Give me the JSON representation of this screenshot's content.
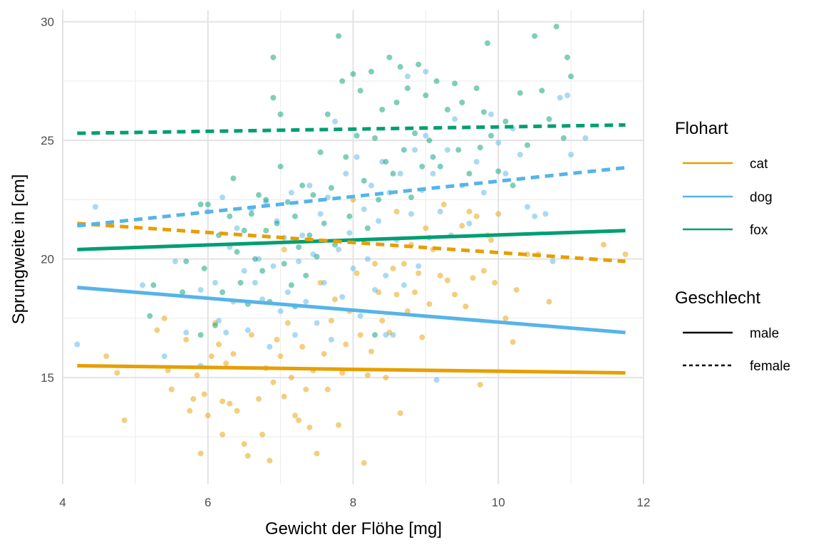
{
  "chart_data": {
    "type": "scatter",
    "xlabel": "Gewicht der Flöhe [mg]",
    "ylabel": "Sprungweite in [cm]",
    "xlim": [
      4,
      12
    ],
    "ylim": [
      10.5,
      30.5
    ],
    "x_ticks": [
      4,
      6,
      8,
      10,
      12
    ],
    "x_tick_labels": [
      "4",
      "6",
      "8",
      "10",
      "12"
    ],
    "y_ticks": [
      15,
      20,
      25,
      30
    ],
    "y_tick_labels": [
      "15",
      "20",
      "25",
      "30"
    ],
    "grid": true,
    "legend_placement": "right",
    "colors": {
      "cat": "#E69F00",
      "dog": "#56B4E9",
      "fox": "#009E73"
    },
    "legend": {
      "color_title": "Flohart",
      "color_entries": [
        "cat",
        "dog",
        "fox"
      ],
      "linetype_title": "Geschlecht",
      "linetype_entries": [
        "male",
        "female"
      ]
    },
    "series": [
      {
        "species": "cat",
        "points": [
          [
            4.6,
            15.9
          ],
          [
            4.75,
            15.2
          ],
          [
            4.85,
            13.2
          ],
          [
            5.3,
            17.0
          ],
          [
            5.4,
            17.5
          ],
          [
            5.45,
            15.3
          ],
          [
            5.5,
            14.5
          ],
          [
            5.7,
            16.6
          ],
          [
            5.75,
            13.6
          ],
          [
            5.8,
            14.1
          ],
          [
            5.85,
            15.1
          ],
          [
            5.9,
            11.8
          ],
          [
            5.95,
            14.3
          ],
          [
            6.0,
            13.4
          ],
          [
            6.05,
            15.9
          ],
          [
            6.1,
            17.3
          ],
          [
            6.15,
            16.4
          ],
          [
            6.2,
            14.0
          ],
          [
            6.2,
            12.6
          ],
          [
            6.25,
            15.6
          ],
          [
            6.3,
            13.9
          ],
          [
            6.35,
            16.0
          ],
          [
            6.4,
            13.6
          ],
          [
            6.5,
            12.2
          ],
          [
            6.55,
            11.7
          ],
          [
            6.6,
            16.8
          ],
          [
            6.7,
            14.1
          ],
          [
            6.75,
            12.6
          ],
          [
            6.8,
            15.4
          ],
          [
            6.85,
            11.5
          ],
          [
            6.9,
            14.8
          ],
          [
            6.95,
            16.6
          ],
          [
            7.0,
            15.9
          ],
          [
            7.05,
            14.2
          ],
          [
            7.1,
            17.3
          ],
          [
            7.15,
            15.0
          ],
          [
            7.2,
            13.4
          ],
          [
            7.25,
            13.2
          ],
          [
            7.3,
            16.3
          ],
          [
            7.35,
            14.5
          ],
          [
            7.4,
            12.9
          ],
          [
            7.45,
            15.3
          ],
          [
            7.5,
            11.8
          ],
          [
            7.55,
            19.0
          ],
          [
            7.6,
            16.0
          ],
          [
            7.65,
            14.5
          ],
          [
            7.7,
            17.4
          ],
          [
            7.75,
            18.3
          ],
          [
            7.8,
            13.0
          ],
          [
            7.85,
            15.2
          ],
          [
            7.9,
            16.4
          ],
          [
            7.95,
            17.8
          ],
          [
            8.05,
            19.4
          ],
          [
            8.1,
            16.8
          ],
          [
            8.15,
            11.4
          ],
          [
            8.2,
            15.1
          ],
          [
            8.25,
            16.1
          ],
          [
            8.3,
            19.8
          ],
          [
            8.35,
            18.6
          ],
          [
            8.4,
            17.4
          ],
          [
            8.45,
            15.0
          ],
          [
            8.5,
            16.9
          ],
          [
            8.55,
            19.6
          ],
          [
            8.6,
            18.5
          ],
          [
            8.65,
            13.5
          ],
          [
            8.7,
            19.8
          ],
          [
            8.75,
            17.8
          ],
          [
            8.8,
            20.6
          ],
          [
            8.85,
            18.6
          ],
          [
            8.9,
            19.4
          ],
          [
            8.95,
            16.7
          ],
          [
            9.0,
            21.3
          ],
          [
            9.05,
            18.1
          ],
          [
            9.1,
            20.4
          ],
          [
            9.2,
            19.3
          ],
          [
            9.25,
            22.3
          ],
          [
            9.3,
            19.1
          ],
          [
            9.4,
            18.5
          ],
          [
            9.5,
            21.4
          ],
          [
            9.55,
            18.0
          ],
          [
            9.6,
            22.0
          ],
          [
            9.65,
            19.2
          ],
          [
            9.7,
            21.8
          ],
          [
            9.75,
            14.7
          ],
          [
            9.8,
            19.5
          ],
          [
            9.85,
            21.0
          ],
          [
            9.9,
            20.8
          ],
          [
            9.95,
            19.0
          ],
          [
            10.0,
            21.9
          ],
          [
            10.1,
            17.5
          ],
          [
            10.2,
            16.5
          ],
          [
            10.25,
            18.7
          ],
          [
            10.4,
            20.2
          ],
          [
            10.55,
            20.2
          ],
          [
            10.7,
            18.2
          ],
          [
            11.45,
            20.6
          ],
          [
            11.75,
            20.2
          ],
          [
            8.0,
            22.5
          ],
          [
            8.6,
            22.0
          ],
          [
            7.05,
            20.4
          ]
        ]
      },
      {
        "species": "dog",
        "points": [
          [
            4.2,
            16.4
          ],
          [
            4.45,
            22.2
          ],
          [
            5.1,
            18.9
          ],
          [
            5.4,
            15.9
          ],
          [
            5.55,
            19.9
          ],
          [
            5.7,
            16.9
          ],
          [
            5.9,
            18.7
          ],
          [
            5.9,
            15.5
          ],
          [
            6.0,
            22.0
          ],
          [
            6.1,
            19.0
          ],
          [
            6.15,
            17.4
          ],
          [
            6.2,
            22.6
          ],
          [
            6.25,
            16.9
          ],
          [
            6.3,
            20.5
          ],
          [
            6.35,
            18.2
          ],
          [
            6.4,
            21.3
          ],
          [
            6.5,
            19.5
          ],
          [
            6.55,
            17.0
          ],
          [
            6.6,
            22.1
          ],
          [
            6.65,
            19.0
          ],
          [
            6.7,
            20.0
          ],
          [
            6.75,
            18.3
          ],
          [
            6.8,
            22.4
          ],
          [
            6.85,
            16.3
          ],
          [
            6.9,
            19.7
          ],
          [
            6.95,
            21.6
          ],
          [
            7.0,
            17.8
          ],
          [
            7.05,
            20.9
          ],
          [
            7.1,
            18.6
          ],
          [
            7.15,
            22.8
          ],
          [
            7.2,
            16.8
          ],
          [
            7.25,
            19.9
          ],
          [
            7.3,
            21.0
          ],
          [
            7.35,
            18.2
          ],
          [
            7.4,
            23.1
          ],
          [
            7.45,
            20.2
          ],
          [
            7.5,
            17.3
          ],
          [
            7.55,
            21.9
          ],
          [
            7.6,
            19.0
          ],
          [
            7.65,
            22.6
          ],
          [
            7.7,
            16.6
          ],
          [
            7.75,
            25.8
          ],
          [
            7.8,
            20.4
          ],
          [
            7.85,
            18.4
          ],
          [
            7.9,
            23.6
          ],
          [
            7.95,
            21.1
          ],
          [
            8.0,
            19.6
          ],
          [
            8.05,
            24.3
          ],
          [
            8.1,
            17.6
          ],
          [
            8.15,
            22.1
          ],
          [
            8.2,
            20.0
          ],
          [
            8.25,
            23.1
          ],
          [
            8.3,
            18.7
          ],
          [
            8.35,
            21.6
          ],
          [
            8.4,
            24.1
          ],
          [
            8.45,
            19.3
          ],
          [
            8.5,
            22.8
          ],
          [
            8.55,
            16.8
          ],
          [
            8.6,
            20.8
          ],
          [
            8.65,
            23.6
          ],
          [
            8.7,
            18.9
          ],
          [
            8.75,
            27.7
          ],
          [
            8.8,
            21.9
          ],
          [
            8.85,
            24.6
          ],
          [
            8.9,
            19.7
          ],
          [
            8.95,
            22.9
          ],
          [
            9.0,
            25.2
          ],
          [
            9.05,
            20.9
          ],
          [
            9.1,
            23.6
          ],
          [
            9.15,
            14.9
          ],
          [
            9.2,
            22.0
          ],
          [
            9.3,
            24.6
          ],
          [
            9.35,
            21.0
          ],
          [
            9.4,
            25.9
          ],
          [
            9.5,
            23.1
          ],
          [
            9.6,
            21.5
          ],
          [
            9.7,
            24.1
          ],
          [
            9.8,
            22.8
          ],
          [
            9.9,
            26.1
          ],
          [
            10.0,
            24.9
          ],
          [
            10.1,
            23.6
          ],
          [
            10.2,
            25.5
          ],
          [
            10.3,
            24.4
          ],
          [
            10.4,
            22.2
          ],
          [
            10.5,
            21.8
          ],
          [
            10.65,
            21.9
          ],
          [
            10.75,
            19.9
          ],
          [
            10.85,
            26.8
          ],
          [
            10.95,
            26.9
          ],
          [
            11.0,
            24.4
          ],
          [
            11.2,
            25.1
          ],
          [
            9.0,
            27.9
          ],
          [
            8.45,
            16.8
          ]
        ]
      },
      {
        "species": "fox",
        "points": [
          [
            5.2,
            17.6
          ],
          [
            5.25,
            18.9
          ],
          [
            5.65,
            18.6
          ],
          [
            5.7,
            19.9
          ],
          [
            5.9,
            16.8
          ],
          [
            5.9,
            22.3
          ],
          [
            5.95,
            19.6
          ],
          [
            6.0,
            22.3
          ],
          [
            6.1,
            17.2
          ],
          [
            6.15,
            21.0
          ],
          [
            6.2,
            18.6
          ],
          [
            6.3,
            21.8
          ],
          [
            6.35,
            23.4
          ],
          [
            6.4,
            20.3
          ],
          [
            6.45,
            19.0
          ],
          [
            6.5,
            21.2
          ],
          [
            6.55,
            18.1
          ],
          [
            6.6,
            21.9
          ],
          [
            6.65,
            20.0
          ],
          [
            6.7,
            22.7
          ],
          [
            6.75,
            19.5
          ],
          [
            6.8,
            21.2
          ],
          [
            6.85,
            18.2
          ],
          [
            6.9,
            28.5
          ],
          [
            6.9,
            26.8
          ],
          [
            6.95,
            21.5
          ],
          [
            7.0,
            23.9
          ],
          [
            7.0,
            26.1
          ],
          [
            7.05,
            19.8
          ],
          [
            7.1,
            22.4
          ],
          [
            7.15,
            18.9
          ],
          [
            7.2,
            21.8
          ],
          [
            7.25,
            20.5
          ],
          [
            7.3,
            23.1
          ],
          [
            7.35,
            19.3
          ],
          [
            7.4,
            21.0
          ],
          [
            7.45,
            22.7
          ],
          [
            7.5,
            20.1
          ],
          [
            7.55,
            24.5
          ],
          [
            7.6,
            21.5
          ],
          [
            7.65,
            26.1
          ],
          [
            7.7,
            23.0
          ],
          [
            7.75,
            20.6
          ],
          [
            7.8,
            29.4
          ],
          [
            7.85,
            27.5
          ],
          [
            7.9,
            24.3
          ],
          [
            7.95,
            21.8
          ],
          [
            8.0,
            27.8
          ],
          [
            8.05,
            25.2
          ],
          [
            8.1,
            27.1
          ],
          [
            8.15,
            23.3
          ],
          [
            8.2,
            21.3
          ],
          [
            8.25,
            27.9
          ],
          [
            8.3,
            25.1
          ],
          [
            8.35,
            22.5
          ],
          [
            8.4,
            26.3
          ],
          [
            8.45,
            24.1
          ],
          [
            8.5,
            28.5
          ],
          [
            8.55,
            23.6
          ],
          [
            8.6,
            26.6
          ],
          [
            8.65,
            28.1
          ],
          [
            8.7,
            24.6
          ],
          [
            8.75,
            27.2
          ],
          [
            8.8,
            22.6
          ],
          [
            8.85,
            25.3
          ],
          [
            8.9,
            28.2
          ],
          [
            8.95,
            23.9
          ],
          [
            9.0,
            26.9
          ],
          [
            9.05,
            25.0
          ],
          [
            9.1,
            24.3
          ],
          [
            9.15,
            27.5
          ],
          [
            9.2,
            23.9
          ],
          [
            9.3,
            26.3
          ],
          [
            9.4,
            27.4
          ],
          [
            9.45,
            24.6
          ],
          [
            9.5,
            26.6
          ],
          [
            9.6,
            23.6
          ],
          [
            9.7,
            27.2
          ],
          [
            9.75,
            24.7
          ],
          [
            9.8,
            26.2
          ],
          [
            9.85,
            29.1
          ],
          [
            9.9,
            25.2
          ],
          [
            10.0,
            23.7
          ],
          [
            10.1,
            25.8
          ],
          [
            10.2,
            23.1
          ],
          [
            10.3,
            27.0
          ],
          [
            10.4,
            24.8
          ],
          [
            10.5,
            29.4
          ],
          [
            10.6,
            27.1
          ],
          [
            10.7,
            25.9
          ],
          [
            10.8,
            29.8
          ],
          [
            10.9,
            25.1
          ],
          [
            10.95,
            28.5
          ],
          [
            11.0,
            27.7
          ],
          [
            8.3,
            16.8
          ],
          [
            7.2,
            18.0
          ],
          [
            6.8,
            22.5
          ]
        ]
      }
    ],
    "fit_lines": [
      {
        "species": "cat",
        "sex": "male",
        "x": [
          4.2,
          11.75
        ],
        "y": [
          15.5,
          15.2
        ]
      },
      {
        "species": "dog",
        "sex": "male",
        "x": [
          4.2,
          11.75
        ],
        "y": [
          18.8,
          16.9
        ]
      },
      {
        "species": "fox",
        "sex": "male",
        "x": [
          4.2,
          11.75
        ],
        "y": [
          20.4,
          21.2
        ]
      },
      {
        "species": "cat",
        "sex": "female",
        "x": [
          4.2,
          11.75
        ],
        "y": [
          21.5,
          19.9
        ]
      },
      {
        "species": "dog",
        "sex": "female",
        "x": [
          4.2,
          11.75
        ],
        "y": [
          21.4,
          23.85
        ]
      },
      {
        "species": "fox",
        "sex": "female",
        "x": [
          4.2,
          11.75
        ],
        "y": [
          25.3,
          25.65
        ]
      }
    ]
  }
}
